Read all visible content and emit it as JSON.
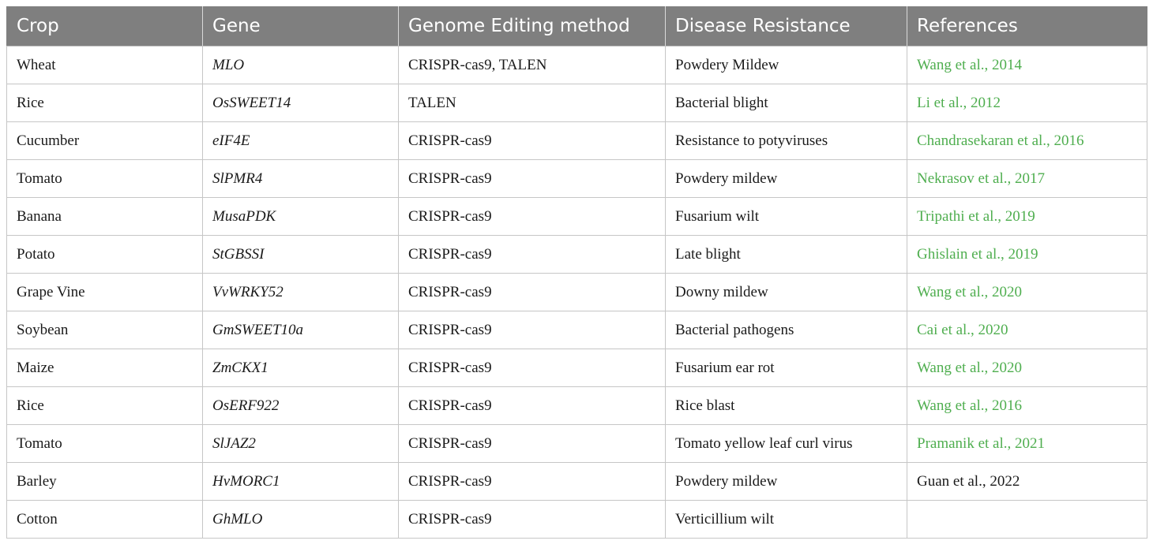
{
  "table": {
    "headers": [
      "Crop",
      "Gene",
      "Genome Editing method",
      "Disease Resistance",
      "References"
    ],
    "rows": [
      {
        "crop": "Wheat",
        "gene": "MLO",
        "method": "CRISPR-cas9, TALEN",
        "disease": "Powdery Mildew",
        "ref": "Wang et al., 2014",
        "ref_link": true
      },
      {
        "crop": "Rice",
        "gene": "OsSWEET14",
        "method": "TALEN",
        "disease": "Bacterial blight",
        "ref": "Li et al., 2012",
        "ref_link": true
      },
      {
        "crop": "Cucumber",
        "gene": "eIF4E",
        "method": "CRISPR-cas9",
        "disease": "Resistance to potyviruses",
        "ref": "Chandrasekaran et al., 2016",
        "ref_link": true
      },
      {
        "crop": "Tomato",
        "gene": "SlPMR4",
        "method": "CRISPR-cas9",
        "disease": "Powdery mildew",
        "ref": "Nekrasov et al., 2017",
        "ref_link": true
      },
      {
        "crop": "Banana",
        "gene": "MusaPDK",
        "method": "CRISPR-cas9",
        "disease": "Fusarium wilt",
        "ref": "Tripathi et al., 2019",
        "ref_link": true
      },
      {
        "crop": "Potato",
        "gene": "StGBSSI",
        "method": "CRISPR-cas9",
        "disease": "Late blight",
        "ref": "Ghislain et al., 2019",
        "ref_link": true
      },
      {
        "crop": "Grape Vine",
        "gene": "VvWRKY52",
        "method": "CRISPR-cas9",
        "disease": "Downy mildew",
        "ref": "Wang et al., 2020",
        "ref_link": true
      },
      {
        "crop": "Soybean",
        "gene": "GmSWEET10a",
        "method": "CRISPR-cas9",
        "disease": "Bacterial pathogens",
        "ref": "Cai et al., 2020",
        "ref_link": true
      },
      {
        "crop": "Maize",
        "gene": "ZmCKX1",
        "method": "CRISPR-cas9",
        "disease": "Fusarium ear rot",
        "ref": "Wang et al., 2020",
        "ref_link": true
      },
      {
        "crop": "Rice",
        "gene": "OsERF922",
        "method": "CRISPR-cas9",
        "disease": "Rice blast",
        "ref": "Wang et al., 2016",
        "ref_link": true
      },
      {
        "crop": "Tomato",
        "gene": "SlJAZ2",
        "method": "CRISPR-cas9",
        "disease": "Tomato yellow leaf curl virus",
        "ref": "Pramanik et al., 2021",
        "ref_link": true
      },
      {
        "crop": "Barley",
        "gene": "HvMORC1",
        "method": "CRISPR-cas9",
        "disease": "Powdery mildew",
        "ref": "Guan et al., 2022",
        "ref_link": false
      },
      {
        "crop": "Cotton",
        "gene": "GhMLO",
        "method": "CRISPR-cas9",
        "disease": "Verticillium wilt",
        "ref": "",
        "ref_link": false
      }
    ]
  },
  "colors": {
    "header_bg": "#7f7f7f",
    "header_text": "#ffffff",
    "link_green": "#4fae4f",
    "border": "#c6c6c6"
  }
}
